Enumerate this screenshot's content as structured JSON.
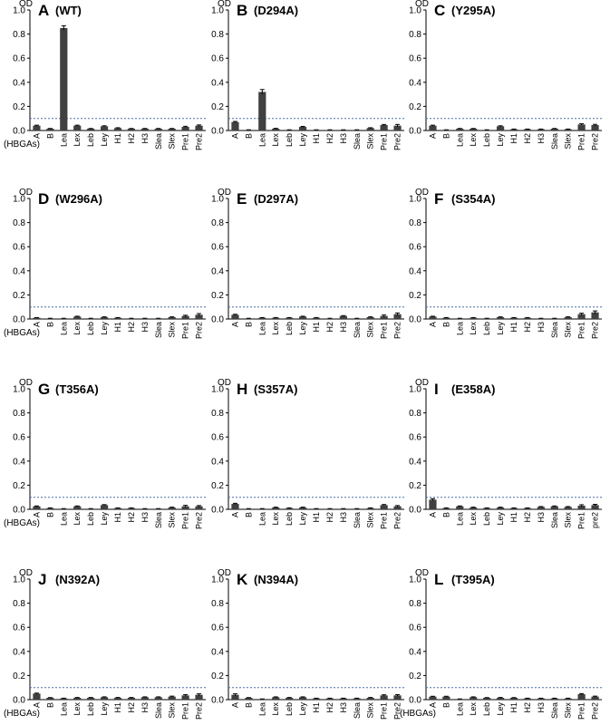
{
  "figure": {
    "y_axis_unit": "OD",
    "x_group_label": "(HBGAs)"
  },
  "colors": {
    "bar": "#404040",
    "axis": "#000000",
    "threshold": "#4a6fa5",
    "error_bar": "#000000"
  },
  "chart_data": [
    {
      "type": "bar",
      "panel": "A",
      "title": "(WT)",
      "ylabel": "OD",
      "xlabel": "(HBGAs)",
      "ylim": [
        0,
        1.0
      ],
      "yticks": [
        "0.0",
        "0.2",
        "0.4",
        "0.6",
        "0.8",
        "1.0"
      ],
      "threshold": 0.1,
      "categories": [
        "A",
        "B",
        "Lea",
        "Lex",
        "Leb",
        "Ley",
        "H1",
        "H2",
        "H3",
        "Slea",
        "Slex",
        "Pre1",
        "Pre2"
      ],
      "values": [
        0.04,
        0.015,
        0.85,
        0.04,
        0.015,
        0.035,
        0.02,
        0.015,
        0.015,
        0.015,
        0.015,
        0.03,
        0.04
      ],
      "errors": [
        0.004,
        0.002,
        0.018,
        0.004,
        0.002,
        0.004,
        0.003,
        0.002,
        0.002,
        0.002,
        0.002,
        0.005,
        0.006
      ]
    },
    {
      "type": "bar",
      "panel": "B",
      "title": "(D294A)",
      "ylabel": "OD",
      "xlabel": "",
      "ylim": [
        0,
        1.0
      ],
      "yticks": [
        "0.0",
        "0.2",
        "0.4",
        "0.6",
        "0.8",
        "1.0"
      ],
      "threshold": 0.1,
      "categories": [
        "A",
        "B",
        "Lea",
        "Lex",
        "Leb",
        "Ley",
        "H1",
        "H2",
        "H3",
        "Slea",
        "Slex",
        "Pre1",
        "Pre2"
      ],
      "values": [
        0.07,
        0.005,
        0.32,
        0.015,
        0.005,
        0.03,
        0.005,
        0.005,
        0.005,
        0.005,
        0.02,
        0.045,
        0.04
      ],
      "errors": [
        0.005,
        0.001,
        0.02,
        0.003,
        0.001,
        0.004,
        0.001,
        0.001,
        0.001,
        0.001,
        0.003,
        0.005,
        0.01
      ]
    },
    {
      "type": "bar",
      "panel": "C",
      "title": "(Y295A)",
      "ylabel": "OD",
      "xlabel": "",
      "ylim": [
        0,
        1.0
      ],
      "yticks": [
        "0.0",
        "0.2",
        "0.4",
        "0.6",
        "0.8",
        "1.0"
      ],
      "threshold": 0.1,
      "categories": [
        "A",
        "B",
        "Lea",
        "Lex",
        "Leb",
        "Ley",
        "H1",
        "H2",
        "H3",
        "Slea",
        "Slex",
        "Pre1",
        "Pre2"
      ],
      "values": [
        0.04,
        0.005,
        0.015,
        0.015,
        0.005,
        0.035,
        0.01,
        0.01,
        0.01,
        0.015,
        0.01,
        0.05,
        0.045
      ],
      "errors": [
        0.004,
        0.001,
        0.002,
        0.002,
        0.001,
        0.004,
        0.002,
        0.002,
        0.002,
        0.002,
        0.002,
        0.006,
        0.006
      ]
    },
    {
      "type": "bar",
      "panel": "D",
      "title": "(W296A)",
      "ylabel": "OD",
      "xlabel": "(HBGAs)",
      "ylim": [
        0,
        1.0
      ],
      "yticks": [
        "0.0",
        "0.2",
        "0.4",
        "0.6",
        "0.8",
        "1.0"
      ],
      "threshold": 0.1,
      "categories": [
        "A",
        "B",
        "Lea",
        "Lex",
        "Leb",
        "Ley",
        "H1",
        "H2",
        "H3",
        "Slea",
        "Slex",
        "Pre1",
        "Pre2"
      ],
      "values": [
        0.01,
        0.005,
        0.005,
        0.02,
        0.005,
        0.015,
        0.01,
        0.005,
        0.005,
        0.005,
        0.015,
        0.025,
        0.035
      ],
      "errors": [
        0.002,
        0.001,
        0.001,
        0.003,
        0.001,
        0.003,
        0.002,
        0.001,
        0.001,
        0.001,
        0.003,
        0.006,
        0.01
      ]
    },
    {
      "type": "bar",
      "panel": "E",
      "title": "(D297A)",
      "ylabel": "OD",
      "xlabel": "",
      "ylim": [
        0,
        1.0
      ],
      "yticks": [
        "0.0",
        "0.2",
        "0.4",
        "0.6",
        "0.8",
        "1.0"
      ],
      "threshold": 0.1,
      "categories": [
        "A",
        "B",
        "Lea",
        "Lex",
        "Leb",
        "Ley",
        "H1",
        "H2",
        "H3",
        "Slea",
        "Slex",
        "Pre1",
        "Pre2"
      ],
      "values": [
        0.035,
        0.005,
        0.01,
        0.01,
        0.01,
        0.02,
        0.01,
        0.005,
        0.025,
        0.005,
        0.015,
        0.025,
        0.04
      ],
      "errors": [
        0.004,
        0.001,
        0.002,
        0.002,
        0.002,
        0.003,
        0.002,
        0.001,
        0.003,
        0.001,
        0.003,
        0.008,
        0.01
      ]
    },
    {
      "type": "bar",
      "panel": "F",
      "title": "(S354A)",
      "ylabel": "OD",
      "xlabel": "",
      "ylim": [
        0,
        1.0
      ],
      "yticks": [
        "0.0",
        "0.2",
        "0.4",
        "0.6",
        "0.8",
        "1.0"
      ],
      "threshold": 0.1,
      "categories": [
        "A",
        "B",
        "Lea",
        "Lex",
        "Leb",
        "Ley",
        "H1",
        "H2",
        "H3",
        "Slea",
        "Slex",
        "Pre1",
        "Pre2"
      ],
      "values": [
        0.02,
        0.01,
        0.005,
        0.01,
        0.005,
        0.015,
        0.01,
        0.01,
        0.005,
        0.005,
        0.015,
        0.04,
        0.055
      ],
      "errors": [
        0.003,
        0.002,
        0.001,
        0.002,
        0.001,
        0.003,
        0.002,
        0.002,
        0.001,
        0.001,
        0.003,
        0.008,
        0.012
      ]
    },
    {
      "type": "bar",
      "panel": "G",
      "title": "(T356A)",
      "ylabel": "OD",
      "xlabel": "(HBGAs)",
      "ylim": [
        0,
        1.0
      ],
      "yticks": [
        "0.0",
        "0.2",
        "0.4",
        "0.6",
        "0.8",
        "1.0"
      ],
      "threshold": 0.1,
      "categories": [
        "A",
        "B",
        "Lea",
        "Lex",
        "Leb",
        "Ley",
        "H1",
        "H2",
        "H3",
        "Slea",
        "Slex",
        "Pre1",
        "Pre2"
      ],
      "values": [
        0.025,
        0.01,
        0.005,
        0.025,
        0.005,
        0.035,
        0.01,
        0.01,
        0.005,
        0.005,
        0.015,
        0.025,
        0.025
      ],
      "errors": [
        0.003,
        0.002,
        0.001,
        0.003,
        0.001,
        0.004,
        0.002,
        0.002,
        0.001,
        0.001,
        0.003,
        0.008,
        0.006
      ]
    },
    {
      "type": "bar",
      "panel": "H",
      "title": "(S357A)",
      "ylabel": "OD",
      "xlabel": "",
      "ylim": [
        0,
        1.0
      ],
      "yticks": [
        "0.0",
        "0.2",
        "0.4",
        "0.6",
        "0.8",
        "1.0"
      ],
      "threshold": 0.1,
      "categories": [
        "A",
        "B",
        "Lea",
        "Lex",
        "Leb",
        "Ley",
        "H1",
        "H2",
        "H3",
        "Slea",
        "Slex",
        "Pre1",
        "Pre2"
      ],
      "values": [
        0.045,
        0.005,
        0.005,
        0.015,
        0.01,
        0.015,
        0.005,
        0.005,
        0.005,
        0.005,
        0.01,
        0.035,
        0.025
      ],
      "errors": [
        0.005,
        0.001,
        0.001,
        0.003,
        0.002,
        0.003,
        0.001,
        0.001,
        0.001,
        0.001,
        0.002,
        0.005,
        0.006
      ]
    },
    {
      "type": "bar",
      "panel": "I",
      "title": "(E358A)",
      "ylabel": "OD",
      "xlabel": "",
      "ylim": [
        0,
        1.0
      ],
      "yticks": [
        "0.0",
        "0.2",
        "0.4",
        "0.6",
        "0.8",
        "1.0"
      ],
      "threshold": 0.1,
      "categories": [
        "A",
        "B",
        "Lea",
        "Lex",
        "Leb",
        "Ley",
        "H1",
        "H2",
        "H3",
        "Slea",
        "Slex",
        "Pre1",
        "pre2"
      ],
      "values": [
        0.08,
        0.01,
        0.025,
        0.015,
        0.01,
        0.015,
        0.01,
        0.01,
        0.02,
        0.025,
        0.02,
        0.03,
        0.035
      ],
      "errors": [
        0.008,
        0.002,
        0.003,
        0.003,
        0.002,
        0.003,
        0.002,
        0.002,
        0.003,
        0.003,
        0.003,
        0.008,
        0.006
      ]
    },
    {
      "type": "bar",
      "panel": "J",
      "title": "(N392A)",
      "ylabel": "OD",
      "xlabel": "(HBGAs)",
      "ylim": [
        0,
        1.0
      ],
      "yticks": [
        "0.0",
        "0.2",
        "0.4",
        "0.6",
        "0.8",
        "1.0"
      ],
      "threshold": 0.1,
      "categories": [
        "A",
        "B",
        "Lea",
        "Lex",
        "Leb",
        "Ley",
        "H1",
        "H2",
        "H3",
        "Slea",
        "Slex",
        "Pre1",
        "Pre2"
      ],
      "values": [
        0.05,
        0.015,
        0.01,
        0.015,
        0.015,
        0.02,
        0.015,
        0.015,
        0.02,
        0.02,
        0.025,
        0.035,
        0.04
      ],
      "errors": [
        0.004,
        0.002,
        0.002,
        0.003,
        0.003,
        0.003,
        0.003,
        0.003,
        0.003,
        0.003,
        0.004,
        0.006,
        0.008
      ]
    },
    {
      "type": "bar",
      "panel": "K",
      "title": "(N394A)",
      "ylabel": "OD",
      "xlabel": "",
      "ylim": [
        0,
        1.0
      ],
      "yticks": [
        "0.0",
        "0.2",
        "0.4",
        "0.6",
        "0.8",
        "1.0"
      ],
      "threshold": 0.1,
      "categories": [
        "A",
        "B",
        "Lea",
        "Lex",
        "Leb",
        "Ley",
        "H1",
        "H2",
        "H3",
        "Slea",
        "Slex",
        "Pre1",
        "Pre2"
      ],
      "values": [
        0.04,
        0.015,
        0.005,
        0.02,
        0.015,
        0.02,
        0.01,
        0.01,
        0.01,
        0.01,
        0.015,
        0.035,
        0.035
      ],
      "errors": [
        0.008,
        0.002,
        0.001,
        0.003,
        0.003,
        0.003,
        0.002,
        0.002,
        0.002,
        0.002,
        0.003,
        0.005,
        0.006
      ]
    },
    {
      "type": "bar",
      "panel": "L",
      "title": "(T395A)",
      "ylabel": "OD",
      "xlabel": "(HBGAs)",
      "ylim": [
        0,
        1.0
      ],
      "yticks": [
        "0.0",
        "0.2",
        "0.4",
        "0.6",
        "0.8",
        "1.0"
      ],
      "threshold": 0.1,
      "categories": [
        "A",
        "B",
        "Lea",
        "Lex",
        "Leb",
        "Ley",
        "H1",
        "H2",
        "H3",
        "Slea",
        "Slex",
        "Pre1",
        "Pre2"
      ],
      "values": [
        0.025,
        0.025,
        0.005,
        0.02,
        0.015,
        0.015,
        0.015,
        0.01,
        0.01,
        0.01,
        0.01,
        0.045,
        0.025
      ],
      "errors": [
        0.003,
        0.003,
        0.001,
        0.003,
        0.002,
        0.003,
        0.002,
        0.002,
        0.002,
        0.002,
        0.002,
        0.005,
        0.004
      ]
    }
  ]
}
